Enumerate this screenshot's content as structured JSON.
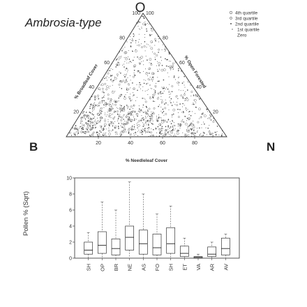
{
  "chart_data": [
    {
      "type": "scatter",
      "subtype": "ternary",
      "title": "Ambrosia-type",
      "vertices": {
        "top": "O",
        "left": "B",
        "right": "N"
      },
      "axes": [
        {
          "label": "% Broadleaf Cover",
          "ticks": [
            20,
            40,
            60,
            80,
            100
          ]
        },
        {
          "label": "% Needleleaf Cover",
          "ticks": [
            20,
            40,
            60,
            80
          ]
        },
        {
          "label": "% Open Forested",
          "ticks": [
            20,
            40,
            60,
            80,
            100
          ]
        }
      ],
      "legend": {
        "position": "top-right",
        "entries": [
          "4th quartile",
          "3rd quartile",
          "2nd quartile",
          "1st quartile",
          "Zero"
        ]
      },
      "grid": false
    },
    {
      "type": "box",
      "ylabel": "Pollen % (Sqrt)",
      "ylim": [
        0,
        10
      ],
      "yticks": [
        0,
        2,
        4,
        6,
        8,
        10
      ],
      "categories": [
        "SH",
        "OP",
        "BR",
        "NE",
        "AS",
        "FO",
        "SH",
        "ET",
        "VA",
        "AR",
        "AV"
      ],
      "boxes": [
        {
          "min": 0.0,
          "q1": 0.5,
          "median": 1.0,
          "q3": 2.0,
          "max": 3.2
        },
        {
          "min": 0.0,
          "q1": 0.6,
          "median": 1.6,
          "q3": 3.3,
          "max": 7.0
        },
        {
          "min": 0.0,
          "q1": 0.4,
          "median": 1.2,
          "q3": 2.4,
          "max": 6.0
        },
        {
          "min": 0.1,
          "q1": 1.0,
          "median": 2.6,
          "q3": 4.0,
          "max": 9.5
        },
        {
          "min": 0.0,
          "q1": 0.5,
          "median": 1.8,
          "q3": 3.5,
          "max": 8.0
        },
        {
          "min": 0.0,
          "q1": 0.4,
          "median": 1.3,
          "q3": 3.0,
          "max": 5.5
        },
        {
          "min": 0.0,
          "q1": 0.6,
          "median": 1.8,
          "q3": 3.8,
          "max": 6.5
        },
        {
          "min": 0.0,
          "q1": 0.2,
          "median": 0.6,
          "q3": 1.5,
          "max": 2.5
        },
        {
          "min": 0.0,
          "q1": 0.0,
          "median": 0.1,
          "q3": 0.2,
          "max": 0.5
        },
        {
          "min": 0.0,
          "q1": 0.2,
          "median": 0.5,
          "q3": 1.4,
          "max": 2.0
        },
        {
          "min": 0.0,
          "q1": 0.4,
          "median": 1.2,
          "q3": 2.5,
          "max": 3.0
        }
      ]
    }
  ]
}
